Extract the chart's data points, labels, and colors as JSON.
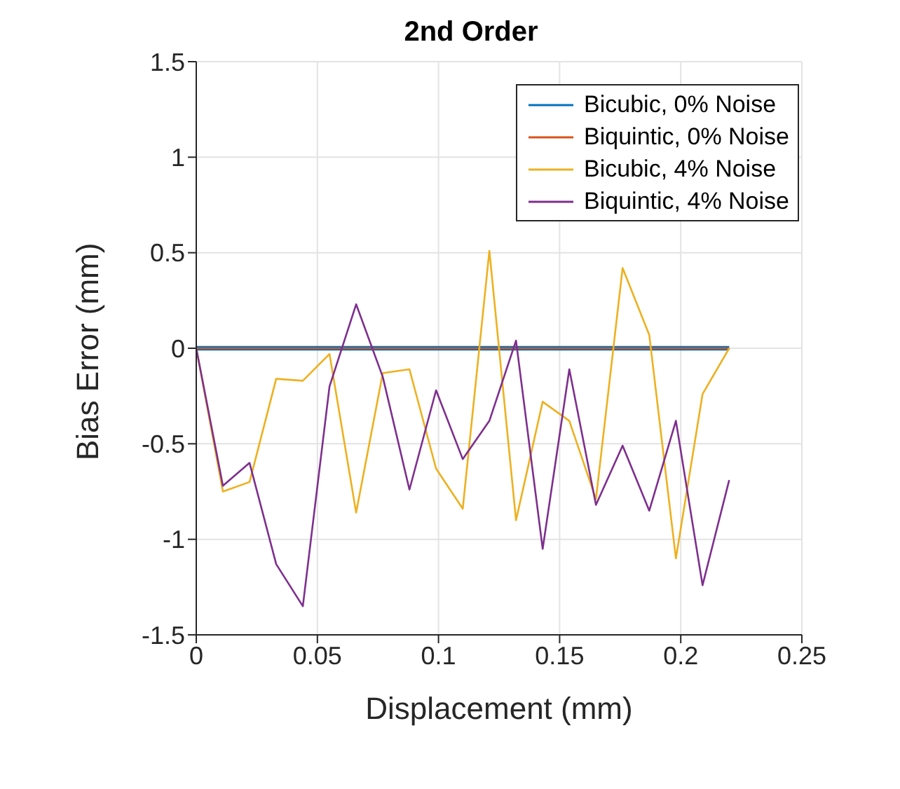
{
  "chart_data": {
    "type": "line",
    "title": "2nd Order",
    "xlabel": "Displacement (mm)",
    "ylabel": "Bias Error (mm)",
    "x": [
      0,
      0.011,
      0.022,
      0.033,
      0.044,
      0.055,
      0.066,
      0.077,
      0.088,
      0.099,
      0.11,
      0.121,
      0.132,
      0.143,
      0.154,
      0.165,
      0.176,
      0.187,
      0.198,
      0.209,
      0.22
    ],
    "series": [
      {
        "name": "Bicubic, 0% Noise",
        "color": "#0072bd",
        "values": [
          0,
          0,
          0,
          0,
          0,
          0,
          0,
          0,
          0,
          0,
          0,
          0,
          0,
          0,
          0,
          0,
          0,
          0,
          0,
          0,
          0
        ]
      },
      {
        "name": "Biquintic, 0% Noise",
        "color": "#d95319",
        "values": [
          0,
          0,
          0,
          0,
          0,
          0,
          0,
          0,
          0,
          0,
          0,
          0,
          0,
          0,
          0,
          0,
          0,
          0,
          0,
          0,
          0
        ]
      },
      {
        "name": "Bicubic, 4% Noise",
        "color": "#edb120",
        "values": [
          0,
          -0.75,
          -0.7,
          -0.16,
          -0.17,
          -0.03,
          -0.86,
          -0.13,
          -0.11,
          -0.63,
          -0.84,
          0.51,
          -0.9,
          -0.28,
          -0.38,
          -0.79,
          0.42,
          0.07,
          -1.1,
          -0.24,
          0
        ]
      },
      {
        "name": "Biquintic, 4% Noise",
        "color": "#7e2f8e",
        "values": [
          0,
          -0.72,
          -0.6,
          -1.13,
          -1.35,
          -0.2,
          0.23,
          -0.15,
          -0.74,
          -0.22,
          -0.58,
          -0.38,
          0.04,
          -1.05,
          -0.11,
          -0.82,
          -0.51,
          -0.85,
          -0.38,
          -1.24,
          -0.69
        ]
      }
    ],
    "xlim": [
      0,
      0.25
    ],
    "xticks": [
      0,
      0.05,
      0.1,
      0.15,
      0.2,
      0.25
    ],
    "ylim": [
      -1.5,
      1.5
    ],
    "yticks": [
      -1.5,
      -1,
      -0.5,
      0,
      0.5,
      1,
      1.5
    ],
    "grid": true,
    "legend": "top right",
    "marker": "none",
    "line_style": "solid"
  }
}
